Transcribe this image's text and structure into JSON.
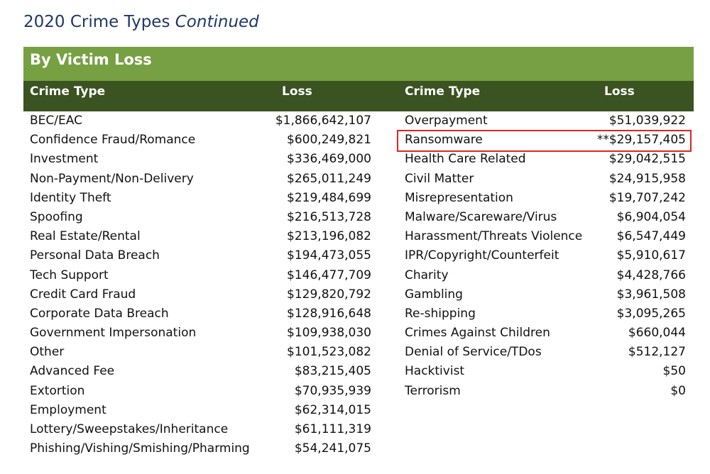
{
  "page": {
    "title": "2020 Crime Types",
    "title_italic": "Continued"
  },
  "banner": "By Victim Loss",
  "headers": {
    "left_type": "Crime Type",
    "left_loss": "Loss",
    "right_type": "Crime Type",
    "right_loss": "Loss"
  },
  "left_rows": [
    {
      "type": "BEC/EAC",
      "loss": "$1,866,642,107"
    },
    {
      "type": "Confidence Fraud/Romance",
      "loss": "$600,249,821"
    },
    {
      "type": "Investment",
      "loss": "$336,469,000"
    },
    {
      "type": "Non-Payment/Non-Delivery",
      "loss": "$265,011,249"
    },
    {
      "type": "Identity Theft",
      "loss": "$219,484,699"
    },
    {
      "type": "Spoofing",
      "loss": "$216,513,728"
    },
    {
      "type": "Real Estate/Rental",
      "loss": "$213,196,082"
    },
    {
      "type": "Personal Data Breach",
      "loss": "$194,473,055"
    },
    {
      "type": "Tech Support",
      "loss": "$146,477,709"
    },
    {
      "type": "Credit Card Fraud",
      "loss": "$129,820,792"
    },
    {
      "type": "Corporate Data Breach",
      "loss": "$128,916,648"
    },
    {
      "type": "Government Impersonation",
      "loss": "$109,938,030"
    },
    {
      "type": "Other",
      "loss": "$101,523,082"
    },
    {
      "type": "Advanced Fee",
      "loss": "$83,215,405"
    },
    {
      "type": "Extortion",
      "loss": "$70,935,939"
    },
    {
      "type": "Employment",
      "loss": "$62,314,015"
    },
    {
      "type": "Lottery/Sweepstakes/Inheritance",
      "loss": "$61,111,319"
    },
    {
      "type": "Phishing/Vishing/Smishing/Pharming",
      "loss": "$54,241,075"
    }
  ],
  "right_rows": [
    {
      "type": "Overpayment",
      "loss": "$51,039,922"
    },
    {
      "type": "Ransomware",
      "loss": "**$29,157,405",
      "highlighted": true
    },
    {
      "type": "Health Care Related",
      "loss": "$29,042,515"
    },
    {
      "type": "Civil Matter",
      "loss": "$24,915,958"
    },
    {
      "type": "Misrepresentation",
      "loss": "$19,707,242"
    },
    {
      "type": "Malware/Scareware/Virus",
      "loss": "$6,904,054"
    },
    {
      "type": "Harassment/Threats Violence",
      "loss": "$6,547,449"
    },
    {
      "type": "IPR/Copyright/Counterfeit",
      "loss": "$5,910,617"
    },
    {
      "type": "Charity",
      "loss": "$4,428,766"
    },
    {
      "type": "Gambling",
      "loss": "$3,961,508"
    },
    {
      "type": "Re-shipping",
      "loss": "$3,095,265"
    },
    {
      "type": "Crimes Against Children",
      "loss": "$660,044"
    },
    {
      "type": "Denial of Service/TDos",
      "loss": "$512,127"
    },
    {
      "type": "Hacktivist",
      "loss": "$50"
    },
    {
      "type": "Terrorism",
      "loss": "$0"
    }
  ],
  "colors": {
    "title": "#1f3864",
    "banner": "#77a043",
    "header": "#3b5221",
    "highlight_border": "#e0261b"
  }
}
